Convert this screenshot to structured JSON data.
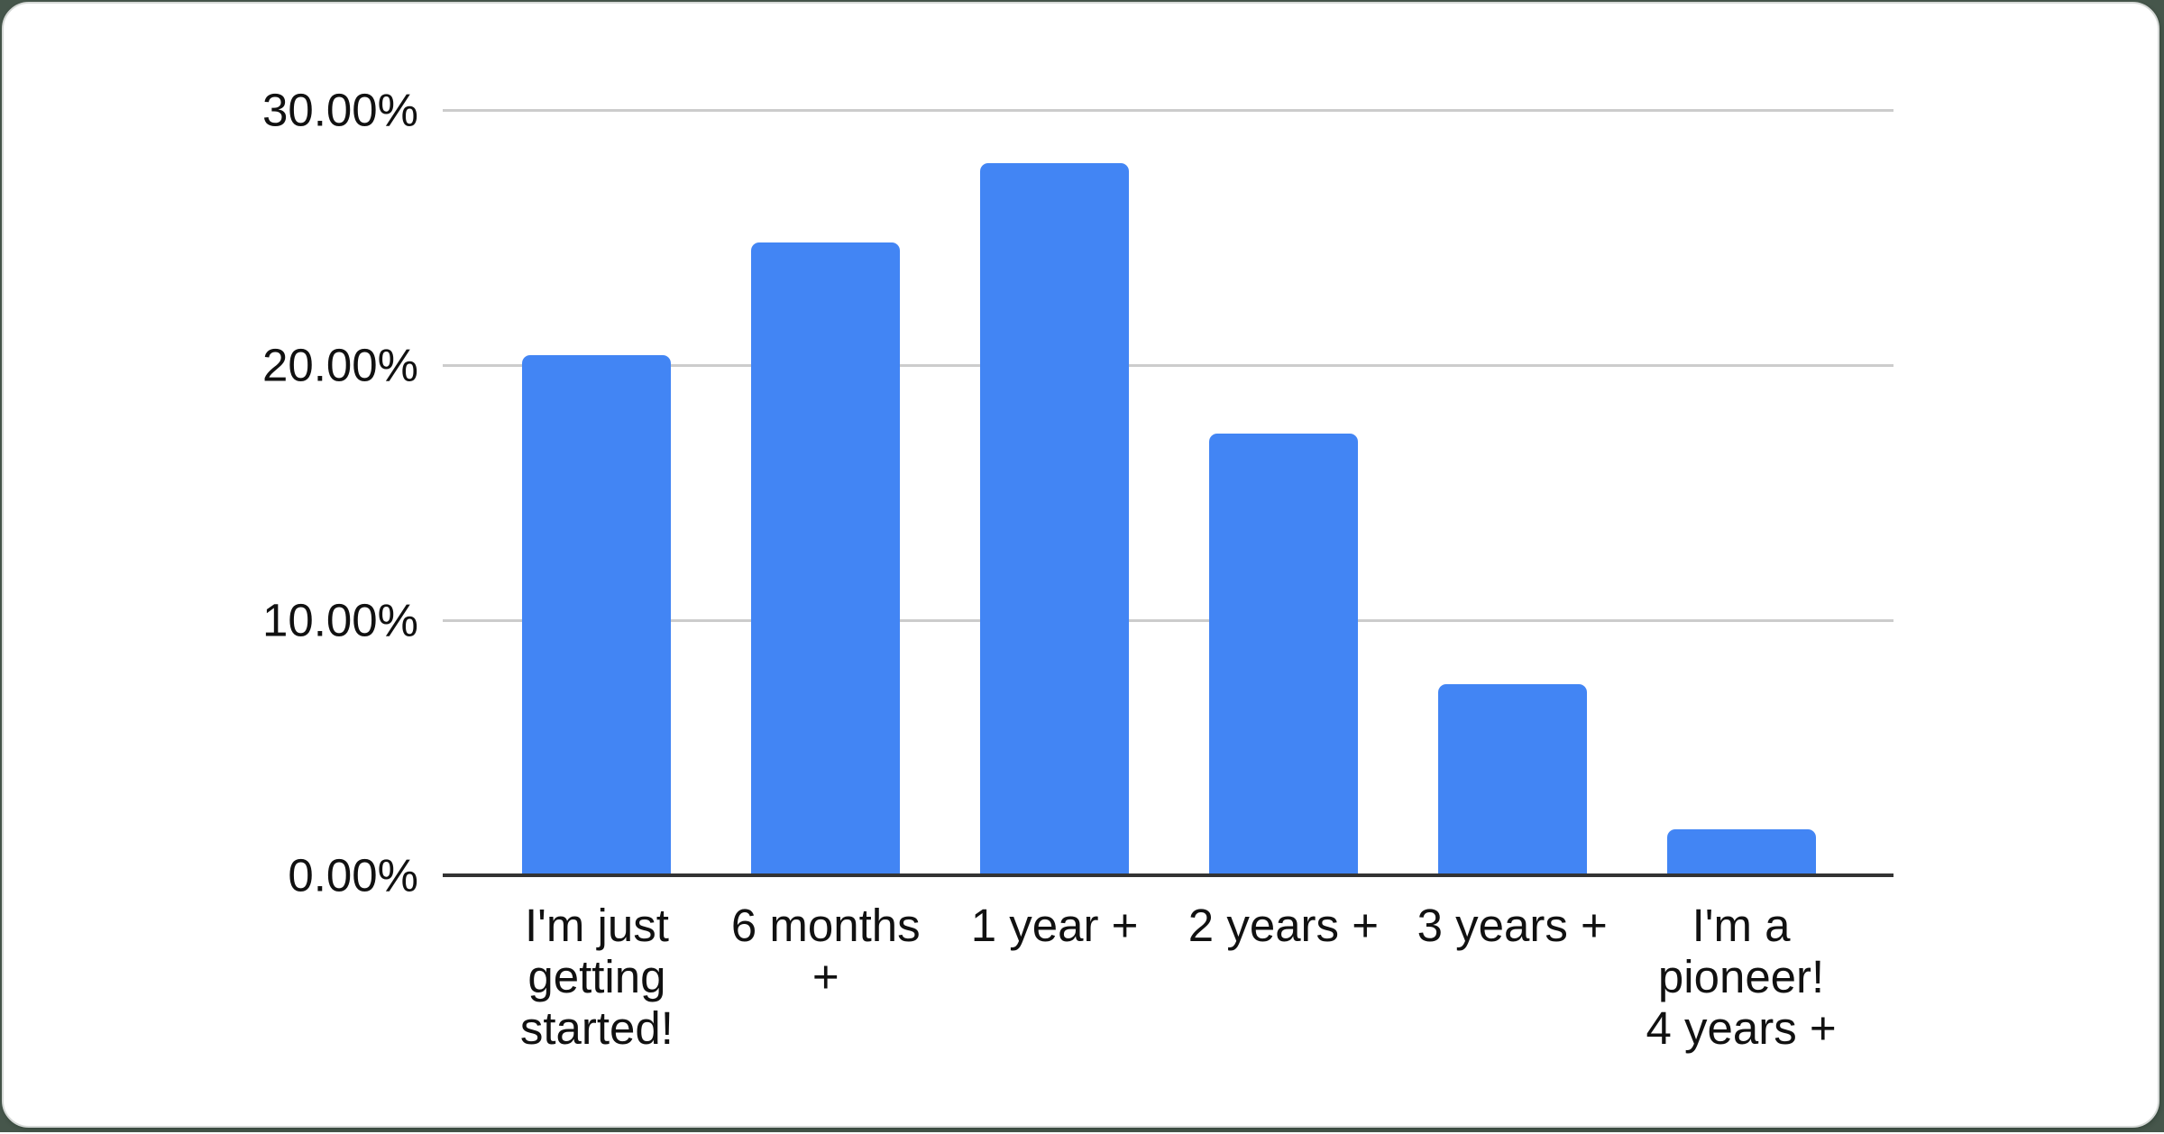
{
  "chart_data": {
    "type": "bar",
    "title": "",
    "categories": [
      "I'm just getting started!",
      "6 months +",
      "1 year +",
      "2 years +",
      "3 years +",
      "I'm a pioneer! 4 years +"
    ],
    "category_lines": [
      [
        "I'm just",
        "getting",
        "started!"
      ],
      [
        "6 months",
        "+"
      ],
      [
        "1 year +"
      ],
      [
        "2 years +"
      ],
      [
        "3 years +"
      ],
      [
        "I'm a",
        "pioneer!",
        "4 years +"
      ]
    ],
    "values": [
      20.4,
      24.8,
      27.9,
      17.3,
      7.5,
      1.8
    ],
    "unit": "%",
    "xlabel": "",
    "ylabel": "",
    "ylim": [
      0,
      30
    ],
    "yticks": [
      0,
      10,
      20,
      30
    ],
    "ytick_labels": [
      "0.00%",
      "10.00%",
      "20.00%",
      "30.00%"
    ],
    "grid": true,
    "legend_position": "none",
    "colors": {
      "bar": "#4285f4",
      "gridline": "#cccccc",
      "baseline": "#333333",
      "tick_text": "#111111",
      "chart_background": "#ffffff",
      "page_background": "#46564b",
      "card_border": "#d6d9d7"
    }
  }
}
